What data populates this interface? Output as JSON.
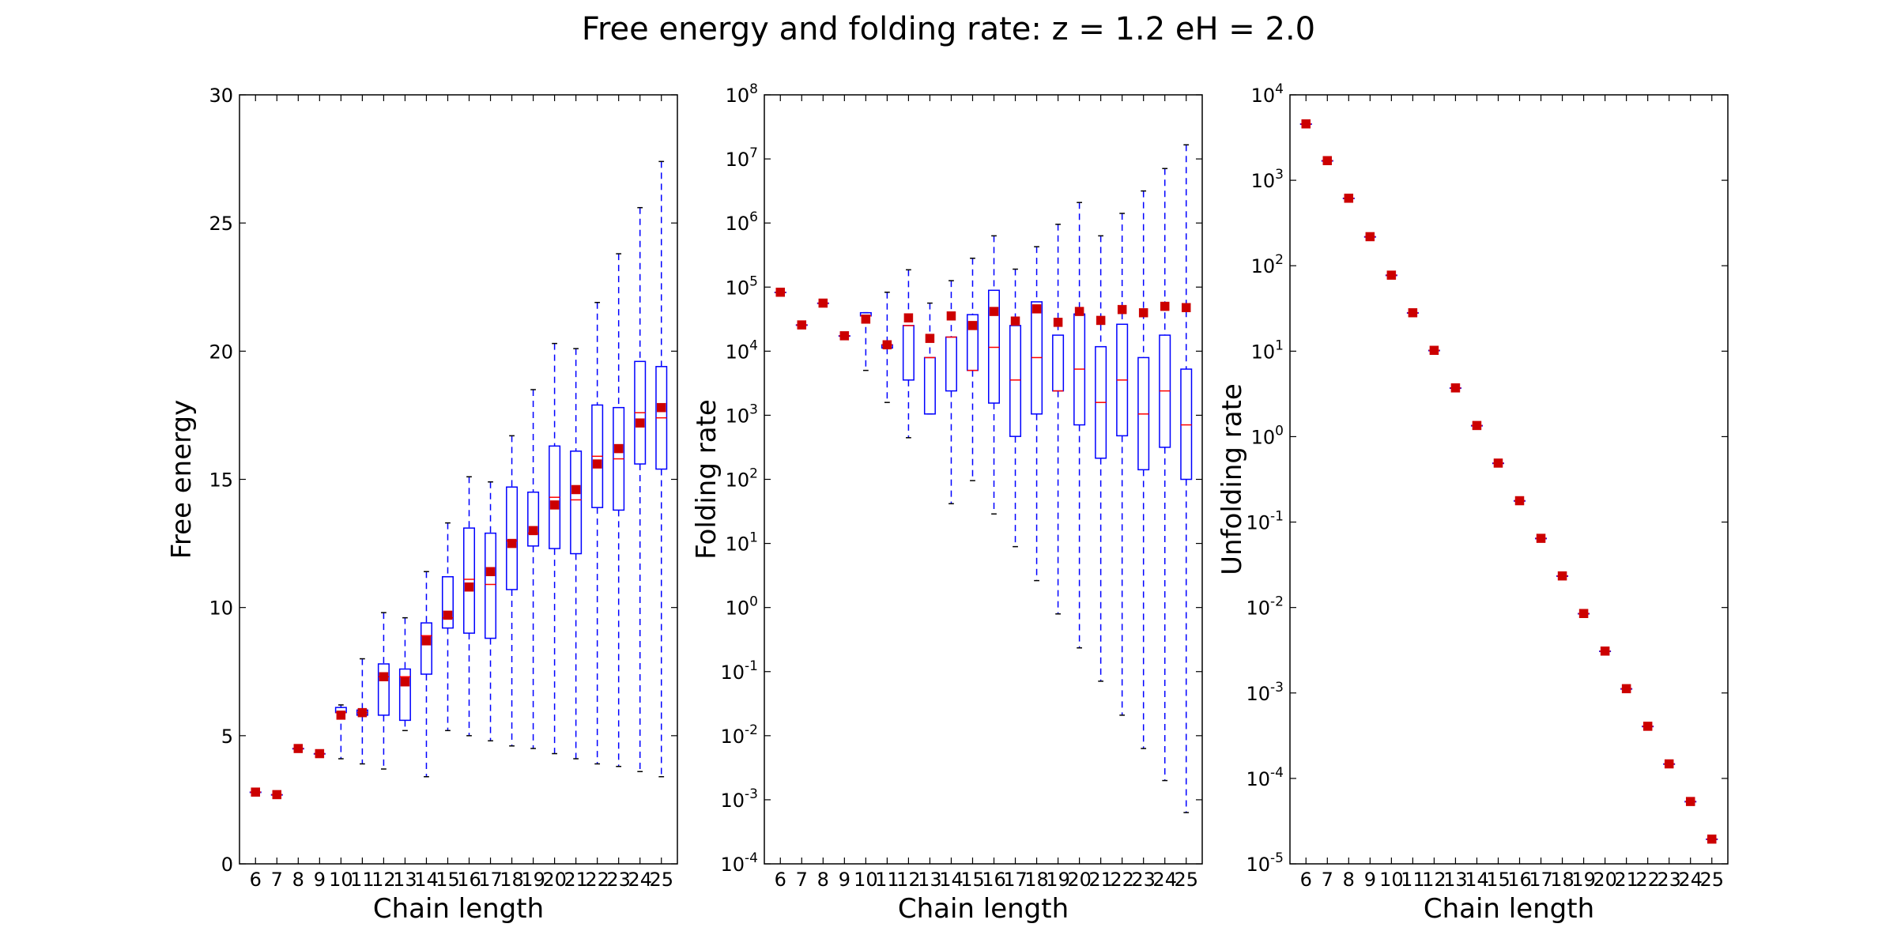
{
  "figure": {
    "title": "Free energy and folding rate: z = 1.2 eH = 2.0"
  },
  "chart_data": [
    {
      "type": "box",
      "ylabel": "Free energy",
      "xlabel": "Chain length",
      "yscale": "linear",
      "ylim": [
        0,
        30
      ],
      "yticks": [
        0,
        5,
        10,
        15,
        20,
        25,
        30
      ],
      "categories": [
        6,
        7,
        8,
        9,
        10,
        11,
        12,
        13,
        14,
        15,
        16,
        17,
        18,
        19,
        20,
        21,
        22,
        23,
        24,
        25
      ],
      "boxes": [
        {
          "x": 6,
          "whislo": 2.8,
          "q1": 2.8,
          "med": 2.8,
          "q3": 2.8,
          "whishi": 2.8,
          "mean": 2.8
        },
        {
          "x": 7,
          "whislo": 2.7,
          "q1": 2.7,
          "med": 2.7,
          "q3": 2.7,
          "whishi": 2.7,
          "mean": 2.7
        },
        {
          "x": 8,
          "whislo": 4.5,
          "q1": 4.5,
          "med": 4.5,
          "q3": 4.5,
          "whishi": 4.5,
          "mean": 4.5
        },
        {
          "x": 9,
          "whislo": 4.3,
          "q1": 4.3,
          "med": 4.3,
          "q3": 4.3,
          "whishi": 4.3,
          "mean": 4.3
        },
        {
          "x": 10,
          "whislo": 4.1,
          "q1": 5.9,
          "med": 5.9,
          "q3": 6.1,
          "whishi": 6.2,
          "mean": 5.8
        },
        {
          "x": 11,
          "whislo": 3.9,
          "q1": 5.8,
          "med": 5.9,
          "q3": 6.0,
          "whishi": 8.0,
          "mean": 5.9
        },
        {
          "x": 12,
          "whislo": 3.7,
          "q1": 5.8,
          "med": 7.3,
          "q3": 7.8,
          "whishi": 9.8,
          "mean": 7.3
        },
        {
          "x": 13,
          "whislo": 5.2,
          "q1": 5.6,
          "med": 7.3,
          "q3": 7.6,
          "whishi": 9.6,
          "mean": 7.1
        },
        {
          "x": 14,
          "whislo": 3.4,
          "q1": 7.4,
          "med": 8.9,
          "q3": 9.4,
          "whishi": 11.4,
          "mean": 8.7
        },
        {
          "x": 15,
          "whislo": 5.2,
          "q1": 9.2,
          "med": 9.6,
          "q3": 11.2,
          "whishi": 13.3,
          "mean": 9.7
        },
        {
          "x": 16,
          "whislo": 5.0,
          "q1": 9.0,
          "med": 11.1,
          "q3": 13.1,
          "whishi": 15.1,
          "mean": 10.8
        },
        {
          "x": 17,
          "whislo": 4.8,
          "q1": 8.8,
          "med": 10.9,
          "q3": 12.9,
          "whishi": 14.9,
          "mean": 11.4
        },
        {
          "x": 18,
          "whislo": 4.6,
          "q1": 10.7,
          "med": 12.6,
          "q3": 14.7,
          "whishi": 16.7,
          "mean": 12.5
        },
        {
          "x": 19,
          "whislo": 4.5,
          "q1": 12.4,
          "med": 12.9,
          "q3": 14.5,
          "whishi": 18.5,
          "mean": 13.0
        },
        {
          "x": 20,
          "whislo": 4.3,
          "q1": 12.3,
          "med": 14.3,
          "q3": 16.3,
          "whishi": 20.3,
          "mean": 14.0
        },
        {
          "x": 21,
          "whislo": 4.1,
          "q1": 12.1,
          "med": 14.2,
          "q3": 16.1,
          "whishi": 20.1,
          "mean": 14.6
        },
        {
          "x": 22,
          "whislo": 3.9,
          "q1": 13.9,
          "med": 15.9,
          "q3": 17.9,
          "whishi": 21.9,
          "mean": 15.6
        },
        {
          "x": 23,
          "whislo": 3.8,
          "q1": 13.8,
          "med": 15.8,
          "q3": 17.8,
          "whishi": 23.8,
          "mean": 16.2
        },
        {
          "x": 24,
          "whislo": 3.6,
          "q1": 15.6,
          "med": 17.6,
          "q3": 19.6,
          "whishi": 25.6,
          "mean": 17.2
        },
        {
          "x": 25,
          "whislo": 3.4,
          "q1": 15.4,
          "med": 17.4,
          "q3": 19.4,
          "whishi": 27.4,
          "mean": 17.8
        }
      ]
    },
    {
      "type": "box",
      "ylabel": "Folding rate",
      "xlabel": "Chain length",
      "yscale": "log",
      "ylim_exp": [
        -4,
        8
      ],
      "yticks_exp": [
        -4,
        -3,
        -2,
        -1,
        0,
        1,
        2,
        3,
        4,
        5,
        6,
        7,
        8
      ],
      "categories": [
        6,
        7,
        8,
        9,
        10,
        11,
        12,
        13,
        14,
        15,
        16,
        17,
        18,
        19,
        20,
        21,
        22,
        23,
        24,
        25
      ],
      "boxes_log10": [
        {
          "x": 6,
          "whislo": 4.92,
          "q1": 4.92,
          "med": 4.92,
          "q3": 4.92,
          "whishi": 4.92,
          "mean": 4.92
        },
        {
          "x": 7,
          "whislo": 4.41,
          "q1": 4.41,
          "med": 4.41,
          "q3": 4.41,
          "whishi": 4.41,
          "mean": 4.41
        },
        {
          "x": 8,
          "whislo": 4.75,
          "q1": 4.75,
          "med": 4.75,
          "q3": 4.75,
          "whishi": 4.75,
          "mean": 4.75
        },
        {
          "x": 9,
          "whislo": 4.24,
          "q1": 4.24,
          "med": 4.24,
          "q3": 4.24,
          "whishi": 4.24,
          "mean": 4.24
        },
        {
          "x": 10,
          "whislo": 3.7,
          "q1": 4.55,
          "med": 4.55,
          "q3": 4.6,
          "whishi": 4.6,
          "mean": 4.5
        },
        {
          "x": 11,
          "whislo": 3.2,
          "q1": 4.05,
          "med": 4.1,
          "q3": 4.1,
          "whishi": 4.92,
          "mean": 4.1
        },
        {
          "x": 12,
          "whislo": 2.65,
          "q1": 3.55,
          "med": 4.4,
          "q3": 4.4,
          "whishi": 5.27,
          "mean": 4.52
        },
        {
          "x": 13,
          "whislo": 3.02,
          "q1": 3.02,
          "med": 3.9,
          "q3": 3.9,
          "whishi": 4.75,
          "mean": 4.2
        },
        {
          "x": 14,
          "whislo": 1.62,
          "q1": 3.38,
          "med": 4.22,
          "q3": 4.22,
          "whishi": 5.1,
          "mean": 4.55
        },
        {
          "x": 15,
          "whislo": 1.98,
          "q1": 3.7,
          "med": 3.7,
          "q3": 4.57,
          "whishi": 5.45,
          "mean": 4.4
        },
        {
          "x": 16,
          "whislo": 1.46,
          "q1": 3.19,
          "med": 4.06,
          "q3": 4.95,
          "whishi": 5.8,
          "mean": 4.62
        },
        {
          "x": 17,
          "whislo": 0.95,
          "q1": 2.67,
          "med": 3.55,
          "q3": 4.4,
          "whishi": 5.28,
          "mean": 4.47
        },
        {
          "x": 18,
          "whislo": 0.42,
          "q1": 3.02,
          "med": 3.9,
          "q3": 4.77,
          "whishi": 5.63,
          "mean": 4.66
        },
        {
          "x": 19,
          "whislo": -0.1,
          "q1": 3.38,
          "med": 3.38,
          "q3": 4.25,
          "whishi": 5.98,
          "mean": 4.45
        },
        {
          "x": 20,
          "whislo": -0.63,
          "q1": 2.85,
          "med": 3.72,
          "q3": 4.58,
          "whishi": 6.32,
          "mean": 4.62
        },
        {
          "x": 21,
          "whislo": -1.15,
          "q1": 2.33,
          "med": 3.2,
          "q3": 4.07,
          "whishi": 5.8,
          "mean": 4.48
        },
        {
          "x": 22,
          "whislo": -1.68,
          "q1": 2.68,
          "med": 3.55,
          "q3": 4.42,
          "whishi": 6.15,
          "mean": 4.65
        },
        {
          "x": 23,
          "whislo": -2.2,
          "q1": 2.15,
          "med": 3.02,
          "q3": 3.9,
          "whishi": 6.5,
          "mean": 4.6
        },
        {
          "x": 24,
          "whislo": -2.7,
          "q1": 2.5,
          "med": 3.38,
          "q3": 4.25,
          "whishi": 6.85,
          "mean": 4.7
        },
        {
          "x": 25,
          "whislo": -3.2,
          "q1": 2.0,
          "med": 2.85,
          "q3": 3.72,
          "whishi": 7.22,
          "mean": 4.68
        }
      ]
    },
    {
      "type": "box",
      "ylabel": "Unfolding rate",
      "xlabel": "Chain length",
      "yscale": "log",
      "ylim_exp": [
        -5,
        4
      ],
      "yticks_exp": [
        -5,
        -4,
        -3,
        -2,
        -1,
        0,
        1,
        2,
        3,
        4
      ],
      "categories": [
        6,
        7,
        8,
        9,
        10,
        11,
        12,
        13,
        14,
        15,
        16,
        17,
        18,
        19,
        20,
        21,
        22,
        23,
        24,
        25
      ],
      "boxes_log10": [
        {
          "x": 6,
          "whislo": 3.66,
          "q1": 3.66,
          "med": 3.66,
          "q3": 3.66,
          "whishi": 3.66,
          "mean": 3.66
        },
        {
          "x": 7,
          "whislo": 3.23,
          "q1": 3.23,
          "med": 3.23,
          "q3": 3.23,
          "whishi": 3.23,
          "mean": 3.23
        },
        {
          "x": 8,
          "whislo": 2.79,
          "q1": 2.79,
          "med": 2.79,
          "q3": 2.79,
          "whishi": 2.79,
          "mean": 2.79
        },
        {
          "x": 9,
          "whislo": 2.34,
          "q1": 2.34,
          "med": 2.34,
          "q3": 2.34,
          "whishi": 2.34,
          "mean": 2.34
        },
        {
          "x": 10,
          "whislo": 1.89,
          "q1": 1.89,
          "med": 1.89,
          "q3": 1.89,
          "whishi": 1.89,
          "mean": 1.89
        },
        {
          "x": 11,
          "whislo": 1.45,
          "q1": 1.45,
          "med": 1.45,
          "q3": 1.45,
          "whishi": 1.45,
          "mean": 1.45
        },
        {
          "x": 12,
          "whislo": 1.01,
          "q1": 1.01,
          "med": 1.01,
          "q3": 1.01,
          "whishi": 1.01,
          "mean": 1.01
        },
        {
          "x": 13,
          "whislo": 0.57,
          "q1": 0.57,
          "med": 0.57,
          "q3": 0.57,
          "whishi": 0.57,
          "mean": 0.57
        },
        {
          "x": 14,
          "whislo": 0.13,
          "q1": 0.13,
          "med": 0.13,
          "q3": 0.13,
          "whishi": 0.13,
          "mean": 0.13
        },
        {
          "x": 15,
          "whislo": -0.31,
          "q1": -0.31,
          "med": -0.31,
          "q3": -0.31,
          "whishi": -0.31,
          "mean": -0.31
        },
        {
          "x": 16,
          "whislo": -0.75,
          "q1": -0.75,
          "med": -0.75,
          "q3": -0.75,
          "whishi": -0.75,
          "mean": -0.75
        },
        {
          "x": 17,
          "whislo": -1.19,
          "q1": -1.19,
          "med": -1.19,
          "q3": -1.19,
          "whishi": -1.19,
          "mean": -1.19
        },
        {
          "x": 18,
          "whislo": -1.63,
          "q1": -1.63,
          "med": -1.63,
          "q3": -1.63,
          "whishi": -1.63,
          "mean": -1.63
        },
        {
          "x": 19,
          "whislo": -2.07,
          "q1": -2.07,
          "med": -2.07,
          "q3": -2.07,
          "whishi": -2.07,
          "mean": -2.07
        },
        {
          "x": 20,
          "whislo": -2.51,
          "q1": -2.51,
          "med": -2.51,
          "q3": -2.51,
          "whishi": -2.51,
          "mean": -2.51
        },
        {
          "x": 21,
          "whislo": -2.95,
          "q1": -2.95,
          "med": -2.95,
          "q3": -2.95,
          "whishi": -2.95,
          "mean": -2.95
        },
        {
          "x": 22,
          "whislo": -3.39,
          "q1": -3.39,
          "med": -3.39,
          "q3": -3.39,
          "whishi": -3.39,
          "mean": -3.39
        },
        {
          "x": 23,
          "whislo": -3.83,
          "q1": -3.83,
          "med": -3.83,
          "q3": -3.83,
          "whishi": -3.83,
          "mean": -3.83
        },
        {
          "x": 24,
          "whislo": -4.27,
          "q1": -4.27,
          "med": -4.27,
          "q3": -4.27,
          "whishi": -4.27,
          "mean": -4.27
        },
        {
          "x": 25,
          "whislo": -4.71,
          "q1": -4.71,
          "med": -4.71,
          "q3": -4.71,
          "whishi": -4.71,
          "mean": -4.71
        }
      ]
    }
  ],
  "colors": {
    "box": "#0000ff",
    "whisker": "#0000ff",
    "median": "#ff0000",
    "mean_marker": "#cc0000",
    "cap": "#000000",
    "axes": "#000000"
  }
}
